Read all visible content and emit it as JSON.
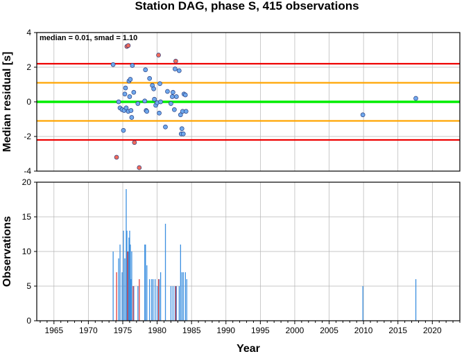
{
  "title": "Station DAG, phase S, 415 observations",
  "chart_data": [
    {
      "type": "scatter",
      "ylabel": "Median residual [s]",
      "annotation": "median = 0.01, smad = 1.10",
      "xlim": [
        1962.5,
        2024
      ],
      "ylim": [
        -4,
        4
      ],
      "yticks": [
        -4,
        -2,
        0,
        2,
        4
      ],
      "grid": true,
      "reference_lines": [
        {
          "y": 0.0,
          "color": "#00ee00"
        },
        {
          "y": 1.1,
          "color": "#ffa500"
        },
        {
          "y": -1.1,
          "color": "#ffa500"
        },
        {
          "y": 2.2,
          "color": "#ee0000"
        },
        {
          "y": -2.2,
          "color": "#ee0000"
        }
      ],
      "colors": {
        "inlier": "#6fa8ec",
        "outlier": "#f26a5a"
      },
      "points": [
        {
          "x": 1973.6,
          "y": 2.15,
          "outlier": false
        },
        {
          "x": 1974.1,
          "y": -3.2,
          "outlier": true
        },
        {
          "x": 1974.4,
          "y": 0.0,
          "outlier": false
        },
        {
          "x": 1974.6,
          "y": -0.35,
          "outlier": false
        },
        {
          "x": 1974.9,
          "y": -0.45,
          "outlier": false
        },
        {
          "x": 1975.1,
          "y": -1.65,
          "outlier": false
        },
        {
          "x": 1975.2,
          "y": -0.5,
          "outlier": false
        },
        {
          "x": 1975.3,
          "y": 0.45,
          "outlier": false
        },
        {
          "x": 1975.4,
          "y": 0.8,
          "outlier": false
        },
        {
          "x": 1975.5,
          "y": -0.35,
          "outlier": false
        },
        {
          "x": 1975.6,
          "y": 3.2,
          "outlier": true
        },
        {
          "x": 1975.8,
          "y": 3.25,
          "outlier": true
        },
        {
          "x": 1975.8,
          "y": -0.55,
          "outlier": false
        },
        {
          "x": 1975.9,
          "y": 1.2,
          "outlier": false
        },
        {
          "x": 1976.0,
          "y": 0.3,
          "outlier": false
        },
        {
          "x": 1976.1,
          "y": 1.3,
          "outlier": false
        },
        {
          "x": 1976.2,
          "y": -0.5,
          "outlier": false
        },
        {
          "x": 1976.3,
          "y": -0.9,
          "outlier": false
        },
        {
          "x": 1976.4,
          "y": 2.1,
          "outlier": false
        },
        {
          "x": 1976.6,
          "y": 0.55,
          "outlier": false
        },
        {
          "x": 1976.7,
          "y": -2.35,
          "outlier": true
        },
        {
          "x": 1977.2,
          "y": -0.1,
          "outlier": false
        },
        {
          "x": 1977.4,
          "y": -3.8,
          "outlier": true
        },
        {
          "x": 1978.2,
          "y": 0.05,
          "outlier": false
        },
        {
          "x": 1978.3,
          "y": 1.85,
          "outlier": false
        },
        {
          "x": 1978.4,
          "y": -0.5,
          "outlier": false
        },
        {
          "x": 1978.5,
          "y": -0.55,
          "outlier": false
        },
        {
          "x": 1978.9,
          "y": 1.35,
          "outlier": false
        },
        {
          "x": 1979.3,
          "y": 0.95,
          "outlier": false
        },
        {
          "x": 1979.5,
          "y": 0.75,
          "outlier": false
        },
        {
          "x": 1979.6,
          "y": 0.15,
          "outlier": false
        },
        {
          "x": 1979.8,
          "y": -0.2,
          "outlier": false
        },
        {
          "x": 1980.0,
          "y": -0.05,
          "outlier": false
        },
        {
          "x": 1980.2,
          "y": 2.7,
          "outlier": true
        },
        {
          "x": 1980.3,
          "y": -0.65,
          "outlier": false
        },
        {
          "x": 1980.4,
          "y": 1.05,
          "outlier": false
        },
        {
          "x": 1980.5,
          "y": 0.0,
          "outlier": false
        },
        {
          "x": 1981.2,
          "y": -1.45,
          "outlier": false
        },
        {
          "x": 1981.5,
          "y": 0.6,
          "outlier": false
        },
        {
          "x": 1982.0,
          "y": -0.1,
          "outlier": false
        },
        {
          "x": 1982.2,
          "y": 0.3,
          "outlier": false
        },
        {
          "x": 1982.3,
          "y": 0.55,
          "outlier": false
        },
        {
          "x": 1982.5,
          "y": -0.45,
          "outlier": false
        },
        {
          "x": 1982.6,
          "y": 1.9,
          "outlier": false
        },
        {
          "x": 1982.7,
          "y": 2.35,
          "outlier": true
        },
        {
          "x": 1982.8,
          "y": 0.3,
          "outlier": false
        },
        {
          "x": 1983.2,
          "y": 1.8,
          "outlier": false
        },
        {
          "x": 1983.4,
          "y": -0.75,
          "outlier": false
        },
        {
          "x": 1983.5,
          "y": -1.85,
          "outlier": false
        },
        {
          "x": 1983.6,
          "y": -1.55,
          "outlier": false
        },
        {
          "x": 1983.7,
          "y": -0.55,
          "outlier": false
        },
        {
          "x": 1983.8,
          "y": -1.85,
          "outlier": false
        },
        {
          "x": 1983.9,
          "y": 0.45,
          "outlier": false
        },
        {
          "x": 1984.1,
          "y": 0.4,
          "outlier": false
        },
        {
          "x": 1984.2,
          "y": -0.55,
          "outlier": false
        },
        {
          "x": 2009.9,
          "y": -0.75,
          "outlier": false
        },
        {
          "x": 2017.6,
          "y": 0.2,
          "outlier": false
        }
      ]
    },
    {
      "type": "bar",
      "xlabel": "Year",
      "ylabel": "Observations",
      "xlim": [
        1962.5,
        2024
      ],
      "ylim": [
        0,
        20
      ],
      "yticks": [
        0,
        5,
        10,
        15,
        20
      ],
      "xticks": [
        1965,
        1970,
        1975,
        1980,
        1985,
        1990,
        1995,
        2000,
        2005,
        2010,
        2015,
        2020
      ],
      "grid": true,
      "colors": {
        "total": "#3b8fe0",
        "outliers": "#e03b3b"
      },
      "series": [
        {
          "key": "total",
          "x": [
            1973.6,
            1974.4,
            1974.6,
            1974.9,
            1975.1,
            1975.3,
            1975.5,
            1975.6,
            1975.8,
            1975.9,
            1976.0,
            1976.1,
            1976.2,
            1976.3,
            1976.6,
            1977.2,
            1978.2,
            1978.3,
            1978.5,
            1978.9,
            1979.2,
            1979.4,
            1979.7,
            1980.0,
            1980.3,
            1980.5,
            1981.2,
            1982.0,
            1982.3,
            1982.6,
            1982.8,
            1983.2,
            1983.4,
            1983.6,
            1983.8,
            1984.1,
            1984.3,
            2009.9,
            2017.6
          ],
          "values": [
            10,
            9,
            11,
            7,
            13,
            9,
            19,
            13,
            10,
            12,
            13,
            11,
            6,
            10,
            5,
            5,
            11,
            11,
            8,
            6,
            6,
            6,
            6,
            5,
            6,
            7,
            14,
            5,
            5,
            5,
            5,
            5,
            11,
            7,
            7,
            7,
            6,
            5,
            6
          ]
        },
        {
          "key": "outliers",
          "x": [
            1974.1,
            1975.7,
            1976.5,
            1977.4,
            1980.2,
            1982.7
          ],
          "values": [
            7,
            10,
            5,
            6,
            6,
            5
          ]
        }
      ]
    }
  ]
}
